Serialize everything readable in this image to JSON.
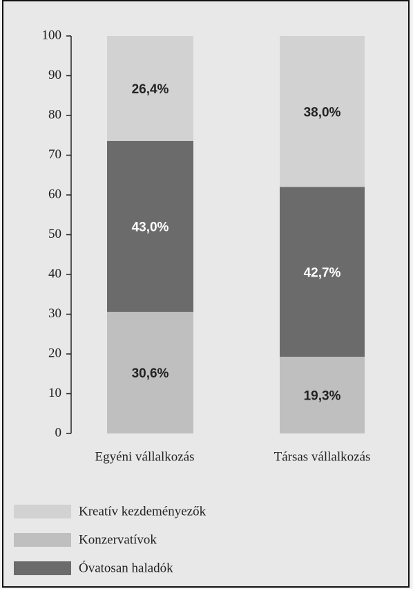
{
  "chart_data": {
    "type": "stacked_bar",
    "categories": [
      "Egyéni vállalkozás",
      "Társas vállalkozás"
    ],
    "series": [
      {
        "name": "Kreatív kezdeményezők",
        "color": "#d2d2d2",
        "label_color": "#222222",
        "values": [
          26.4,
          38.0
        ],
        "value_labels": [
          "26,4%",
          "38,0%"
        ]
      },
      {
        "name": "Konzervatívok",
        "color": "#bfbfbf",
        "label_color": "#222222",
        "values": [
          30.6,
          19.3
        ],
        "value_labels": [
          "30,6%",
          "19,3%"
        ]
      },
      {
        "name": "Óvatosan haladók",
        "color": "#6b6b6b",
        "label_color": "#ffffff",
        "values": [
          43.0,
          42.7
        ],
        "value_labels": [
          "43,0%",
          "42,7%"
        ]
      }
    ],
    "stack_order": [
      1,
      2,
      0
    ],
    "ylim": [
      0,
      100
    ],
    "yticks": [
      0,
      10,
      20,
      30,
      40,
      50,
      60,
      70,
      80,
      90,
      100
    ]
  }
}
